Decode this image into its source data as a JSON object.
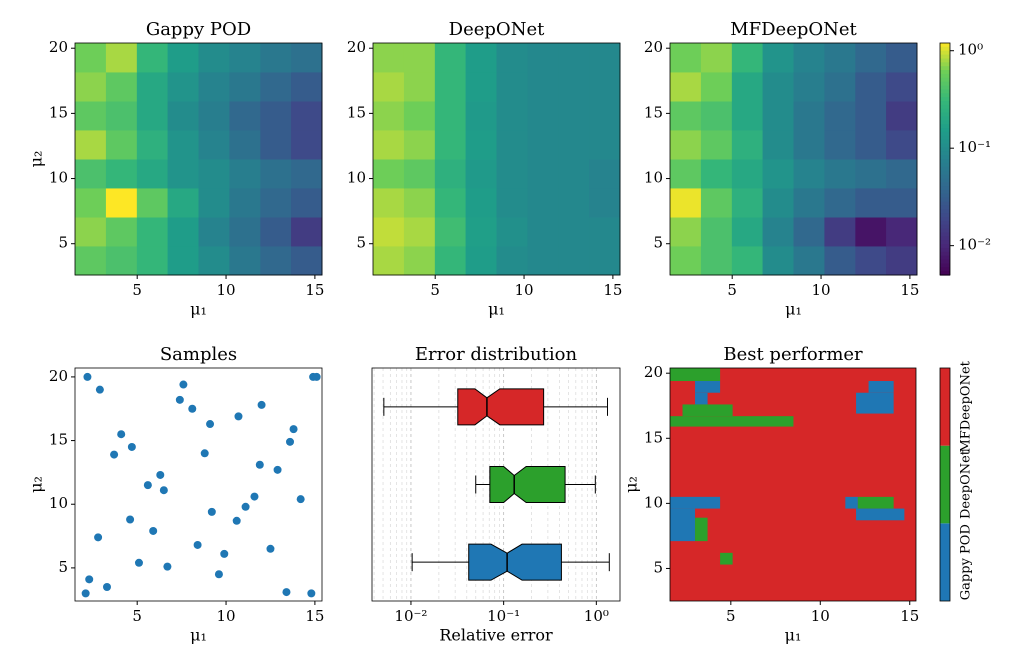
{
  "chart_data": [
    {
      "type": "heatmap",
      "title": "Gappy POD",
      "xlabel": "μ₁",
      "ylabel": "μ₂",
      "xlim": [
        1.5,
        15.4
      ],
      "ylim": [
        2.6,
        20.4
      ],
      "xticks": [
        5,
        10,
        15
      ],
      "yticks": [
        5,
        10,
        15,
        20
      ],
      "colormap": "viridis",
      "zscale": "log",
      "zlim": [
        0.005,
        1.2
      ],
      "x_edges": [
        1.5,
        3.24,
        4.98,
        6.71,
        8.45,
        10.19,
        11.93,
        13.66,
        15.4
      ],
      "y_edges": [
        2.6,
        4.83,
        7.05,
        9.28,
        11.5,
        13.73,
        15.95,
        18.18,
        20.4
      ],
      "z": [
        [
          0.5,
          0.4,
          0.3,
          0.15,
          0.1,
          0.06,
          0.04,
          0.03
        ],
        [
          0.7,
          0.5,
          0.3,
          0.15,
          0.08,
          0.05,
          0.03,
          0.015
        ],
        [
          0.6,
          1.2,
          0.5,
          0.2,
          0.1,
          0.06,
          0.04,
          0.03
        ],
        [
          0.4,
          0.3,
          0.2,
          0.12,
          0.1,
          0.07,
          0.05,
          0.04
        ],
        [
          0.8,
          0.5,
          0.25,
          0.12,
          0.08,
          0.05,
          0.03,
          0.02
        ],
        [
          0.5,
          0.4,
          0.2,
          0.1,
          0.07,
          0.04,
          0.03,
          0.02
        ],
        [
          0.7,
          0.5,
          0.2,
          0.12,
          0.08,
          0.06,
          0.04,
          0.03
        ],
        [
          0.6,
          0.8,
          0.3,
          0.15,
          0.1,
          0.08,
          0.06,
          0.05
        ]
      ]
    },
    {
      "type": "heatmap",
      "title": "DeepONet",
      "xlabel": "μ₁",
      "xlim": [
        1.5,
        15.4
      ],
      "ylim": [
        2.6,
        20.4
      ],
      "xticks": [
        5,
        10,
        15
      ],
      "yticks": [
        5,
        10,
        15,
        20
      ],
      "colormap": "viridis",
      "zscale": "log",
      "zlim": [
        0.005,
        1.2
      ],
      "x_edges": [
        1.5,
        3.24,
        4.98,
        6.71,
        8.45,
        10.19,
        11.93,
        13.66,
        15.4
      ],
      "y_edges": [
        2.6,
        4.83,
        7.05,
        9.28,
        11.5,
        13.73,
        15.95,
        18.18,
        20.4
      ],
      "z": [
        [
          0.8,
          0.7,
          0.3,
          0.15,
          0.1,
          0.09,
          0.09,
          0.09
        ],
        [
          0.9,
          0.8,
          0.35,
          0.16,
          0.11,
          0.09,
          0.09,
          0.09
        ],
        [
          0.8,
          0.7,
          0.3,
          0.15,
          0.1,
          0.09,
          0.09,
          0.08
        ],
        [
          0.6,
          0.5,
          0.25,
          0.14,
          0.1,
          0.09,
          0.09,
          0.08
        ],
        [
          0.8,
          0.7,
          0.3,
          0.15,
          0.1,
          0.09,
          0.09,
          0.09
        ],
        [
          0.7,
          0.6,
          0.3,
          0.14,
          0.1,
          0.09,
          0.09,
          0.09
        ],
        [
          0.8,
          0.7,
          0.3,
          0.15,
          0.1,
          0.09,
          0.09,
          0.09
        ],
        [
          0.7,
          0.7,
          0.3,
          0.15,
          0.1,
          0.09,
          0.09,
          0.09
        ]
      ]
    },
    {
      "type": "heatmap",
      "title": "MFDeepONet",
      "xlabel": "μ₁",
      "xlim": [
        1.5,
        15.4
      ],
      "ylim": [
        2.6,
        20.4
      ],
      "xticks": [
        5,
        10,
        15
      ],
      "yticks": [
        5,
        10,
        15,
        20
      ],
      "colormap": "viridis",
      "zscale": "log",
      "zlim": [
        0.005,
        1.2
      ],
      "colorbar_ticks": [
        {
          "value": 0.01,
          "label": "10⁻²"
        },
        {
          "value": 0.1,
          "label": "10⁻¹"
        },
        {
          "value": 1,
          "label": "10⁰"
        }
      ],
      "x_edges": [
        1.5,
        3.24,
        4.98,
        6.71,
        8.45,
        10.19,
        11.93,
        13.66,
        15.4
      ],
      "y_edges": [
        2.6,
        4.83,
        7.05,
        9.28,
        11.5,
        13.73,
        15.95,
        18.18,
        20.4
      ],
      "z": [
        [
          0.6,
          0.4,
          0.3,
          0.1,
          0.06,
          0.03,
          0.02,
          0.015
        ],
        [
          0.7,
          0.4,
          0.2,
          0.08,
          0.04,
          0.015,
          0.007,
          0.01
        ],
        [
          1.1,
          0.5,
          0.25,
          0.1,
          0.06,
          0.04,
          0.03,
          0.03
        ],
        [
          0.5,
          0.3,
          0.2,
          0.12,
          0.08,
          0.06,
          0.05,
          0.04
        ],
        [
          0.7,
          0.5,
          0.25,
          0.1,
          0.06,
          0.04,
          0.03,
          0.02
        ],
        [
          0.5,
          0.4,
          0.2,
          0.1,
          0.06,
          0.04,
          0.03,
          0.015
        ],
        [
          0.8,
          0.6,
          0.2,
          0.1,
          0.07,
          0.05,
          0.03,
          0.02
        ],
        [
          0.6,
          0.7,
          0.3,
          0.12,
          0.08,
          0.06,
          0.04,
          0.03
        ]
      ]
    },
    {
      "type": "scatter",
      "title": "Samples",
      "xlabel": "μ₁",
      "ylabel": "μ₂",
      "color": "#1f77b4",
      "xlim": [
        1.5,
        15.4
      ],
      "ylim": [
        2.4,
        20.7
      ],
      "xticks": [
        5,
        10,
        15
      ],
      "yticks": [
        5,
        10,
        15,
        20
      ],
      "x": [
        2.2,
        2.9,
        7.6,
        7.4,
        8.1,
        9.1,
        10.7,
        12.0,
        14.9,
        15.1,
        13.8,
        13.6,
        4.1,
        3.7,
        4.7,
        6.3,
        6.5,
        5.6,
        8.8,
        11.9,
        12.9,
        14.2,
        11.6,
        11.1,
        10.6,
        9.2,
        5.9,
        4.6,
        2.8,
        8.4,
        9.9,
        12.5,
        5.1,
        6.7,
        9.6,
        2.3,
        3.3,
        2.1,
        13.4,
        14.8
      ],
      "y": [
        20.0,
        19.0,
        19.4,
        18.2,
        17.5,
        16.3,
        16.9,
        17.8,
        20.0,
        20.0,
        15.9,
        14.9,
        15.5,
        13.9,
        14.5,
        12.3,
        11.1,
        11.5,
        14.0,
        13.1,
        12.7,
        10.4,
        10.6,
        9.8,
        8.7,
        9.4,
        7.9,
        8.8,
        7.4,
        6.8,
        6.1,
        6.5,
        5.4,
        5.1,
        4.5,
        4.1,
        3.5,
        3.0,
        3.1,
        3.0
      ]
    },
    {
      "type": "boxplot",
      "title": "Error distribution",
      "xlabel": "Relative error",
      "xscale": "log",
      "grid": true,
      "minor_grid": true,
      "xlim": [
        0.0038,
        1.8
      ],
      "xticks": [
        {
          "value": 0.01,
          "label": "10⁻²"
        },
        {
          "value": 0.1,
          "label": "10⁻¹"
        },
        {
          "value": 1,
          "label": "10⁰"
        }
      ],
      "series": [
        {
          "color": "#1f77b4",
          "whislo": 0.0103,
          "q1": 0.042,
          "median": 0.109,
          "q3": 0.42,
          "whishi": 1.38,
          "notch": [
            0.073,
            0.158
          ]
        },
        {
          "color": "#2ca02c",
          "whislo": 0.05,
          "q1": 0.071,
          "median": 0.13,
          "q3": 0.46,
          "whishi": 0.975,
          "notch": [
            0.1,
            0.175
          ]
        },
        {
          "color": "#d62728",
          "whislo": 0.0051,
          "q1": 0.032,
          "median": 0.066,
          "q3": 0.27,
          "whishi": 1.32,
          "notch": [
            0.049,
            0.091
          ]
        }
      ]
    },
    {
      "type": "category_map",
      "title": "Best performer",
      "xlabel": "μ₁",
      "ylabel": "μ₂",
      "xlim": [
        1.6,
        15.35
      ],
      "ylim": [
        2.5,
        20.4
      ],
      "xticks": [
        5,
        10,
        15
      ],
      "yticks": [
        5,
        10,
        15,
        20
      ],
      "classes": [
        {
          "name": "Gappy POD",
          "color": "#1f77b4"
        },
        {
          "name": "DeepONet",
          "color": "#2ca02c"
        },
        {
          "name": "MFDeepONet",
          "color": "#d62728"
        }
      ],
      "background_class": 2,
      "patches": [
        {
          "class": 1,
          "x": [
            1.6,
            4.4
          ],
          "y": [
            19.4,
            20.4
          ]
        },
        {
          "class": 0,
          "x": [
            3.0,
            4.4
          ],
          "y": [
            18.5,
            19.4
          ]
        },
        {
          "class": 0,
          "x": [
            3.0,
            3.7
          ],
          "y": [
            17.6,
            18.5
          ]
        },
        {
          "class": 1,
          "x": [
            2.3,
            5.1
          ],
          "y": [
            16.7,
            17.6
          ]
        },
        {
          "class": 1,
          "x": [
            1.6,
            8.5
          ],
          "y": [
            15.9,
            16.7
          ]
        },
        {
          "class": 0,
          "x": [
            12.7,
            14.1
          ],
          "y": [
            18.5,
            19.4
          ]
        },
        {
          "class": 0,
          "x": [
            12.0,
            14.1
          ],
          "y": [
            16.9,
            18.5
          ]
        },
        {
          "class": 0,
          "x": [
            1.6,
            4.4
          ],
          "y": [
            9.6,
            10.5
          ]
        },
        {
          "class": 0,
          "x": [
            1.6,
            3.0
          ],
          "y": [
            7.1,
            9.6
          ]
        },
        {
          "class": 1,
          "x": [
            3.0,
            3.7
          ],
          "y": [
            7.1,
            8.9
          ]
        },
        {
          "class": 1,
          "x": [
            4.4,
            5.1
          ],
          "y": [
            5.3,
            6.2
          ]
        },
        {
          "class": 0,
          "x": [
            11.4,
            12.1
          ],
          "y": [
            9.6,
            10.5
          ]
        },
        {
          "class": 1,
          "x": [
            12.1,
            14.1
          ],
          "y": [
            9.6,
            10.5
          ]
        },
        {
          "class": 0,
          "x": [
            12.0,
            14.7
          ],
          "y": [
            8.7,
            9.6
          ]
        }
      ]
    }
  ]
}
